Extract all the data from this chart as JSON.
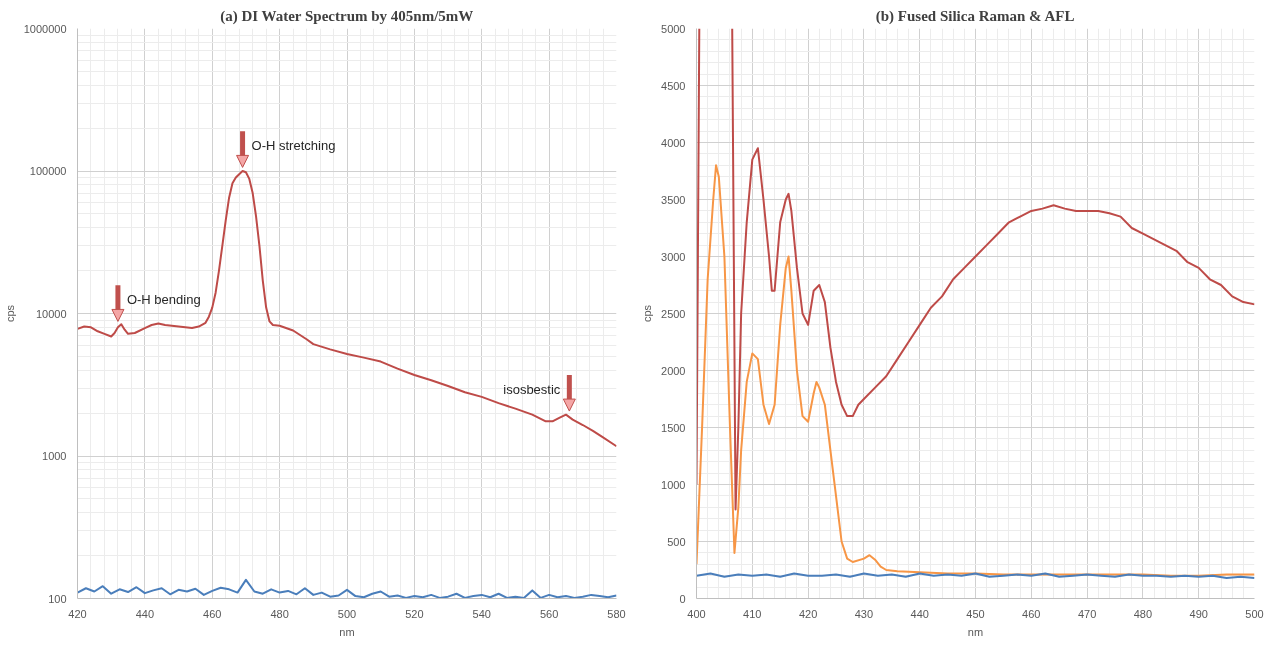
{
  "chart_data": [
    {
      "type": "line",
      "title": "(a) DI Water Spectrum by 405nm/5mW",
      "xlabel": "nm",
      "ylabel": "cps",
      "log": "y",
      "grid": true,
      "xlim": [
        420,
        580
      ],
      "xticks": [
        420,
        440,
        460,
        480,
        500,
        520,
        540,
        560,
        580
      ],
      "ylim": [
        100,
        1000000
      ],
      "yticks": [
        100,
        1000,
        10000,
        100000,
        1000000
      ],
      "annotations": [
        {
          "text": "O-H bending",
          "x": 432,
          "y": 8300
        },
        {
          "text": "O-H stretching",
          "x": 469,
          "y": 100000
        },
        {
          "text": "isosbestic",
          "x": 566,
          "y": 1950
        }
      ],
      "series": [
        {
          "color": "#be4b48",
          "x": [
            420,
            422,
            424,
            426,
            428,
            430,
            431,
            432,
            433,
            434,
            435,
            437,
            440,
            442,
            444,
            446,
            450,
            454,
            456,
            458,
            459,
            460,
            461,
            462,
            463,
            464,
            465,
            466,
            467,
            468,
            469,
            470,
            471,
            472,
            473,
            474,
            475,
            476,
            477,
            478,
            480,
            484,
            488,
            490,
            495,
            500,
            505,
            510,
            515,
            520,
            525,
            530,
            535,
            540,
            545,
            550,
            555,
            559,
            561,
            563,
            565,
            567,
            570,
            573,
            576,
            580
          ],
          "values": [
            7800,
            8100,
            8000,
            7500,
            7200,
            6900,
            7300,
            8000,
            8400,
            7700,
            7200,
            7300,
            7900,
            8300,
            8500,
            8300,
            8100,
            7900,
            8100,
            8600,
            9500,
            11000,
            14000,
            20000,
            30000,
            45000,
            65000,
            82000,
            90000,
            95000,
            100000,
            98000,
            88000,
            70000,
            48000,
            30000,
            17000,
            11000,
            8800,
            8300,
            8200,
            7600,
            6600,
            6100,
            5600,
            5200,
            4900,
            4600,
            4100,
            3700,
            3400,
            3100,
            2800,
            2600,
            2350,
            2150,
            1950,
            1750,
            1750,
            1850,
            1950,
            1800,
            1650,
            1500,
            1350,
            1170
          ]
        },
        {
          "color": "#4a7ebb",
          "x": [
            420,
            422.5,
            425,
            427.5,
            430,
            432.5,
            435,
            437.5,
            440,
            442.5,
            445,
            447.5,
            450,
            452.5,
            455,
            457.5,
            460,
            462.5,
            465,
            467.5,
            470,
            472.5,
            475,
            477.5,
            480,
            482.5,
            485,
            487.5,
            490,
            492.5,
            495,
            497.5,
            500,
            502.5,
            505,
            507.5,
            510,
            512.5,
            515,
            517.5,
            520,
            522.5,
            525,
            527.5,
            530,
            532.5,
            535,
            537.5,
            540,
            542.5,
            545,
            547.5,
            550,
            552.5,
            555,
            557.5,
            560,
            562.5,
            565,
            567.5,
            570,
            572.5,
            575,
            577.5,
            580
          ],
          "values": [
            110,
            118,
            112,
            122,
            108,
            116,
            111,
            120,
            109,
            114,
            118,
            107,
            115,
            112,
            117,
            106,
            113,
            119,
            116,
            110,
            135,
            112,
            108,
            116,
            110,
            113,
            107,
            118,
            106,
            110,
            103,
            105,
            115,
            104,
            102,
            108,
            112,
            103,
            105,
            101,
            104,
            102,
            106,
            101,
            103,
            108,
            101,
            104,
            106,
            102,
            108,
            101,
            103,
            101,
            114,
            101,
            106,
            102,
            104,
            101,
            103,
            106,
            104,
            102,
            105
          ]
        }
      ]
    },
    {
      "type": "line",
      "title": "(b) Fused Silica Raman & AFL",
      "xlabel": "nm",
      "ylabel": "cps",
      "grid": true,
      "xlim": [
        400,
        500
      ],
      "xticks": [
        400,
        410,
        420,
        430,
        440,
        450,
        460,
        470,
        480,
        490,
        500
      ],
      "ylim": [
        0,
        5000
      ],
      "yticks": [
        0,
        500,
        1000,
        1500,
        2000,
        2500,
        3000,
        3500,
        4000,
        4500,
        5000
      ],
      "series": [
        {
          "color": "#be4b48",
          "x": [
            400,
            400.5,
            403,
            406.4,
            407,
            407.5,
            408,
            409,
            410,
            410.5,
            411,
            412,
            413,
            413.5,
            414,
            415,
            416,
            416.5,
            417,
            418,
            419,
            420,
            421,
            422,
            423,
            424,
            425,
            426,
            427,
            428,
            429,
            430,
            432,
            434,
            436,
            438,
            440,
            442,
            444,
            446,
            448,
            450,
            452,
            454,
            456,
            458,
            460,
            462,
            464,
            466,
            468,
            470,
            472,
            474,
            476,
            478,
            480,
            482,
            484,
            486,
            488,
            490,
            492,
            494,
            496,
            498,
            500
          ],
          "values": [
            1000,
            5000,
            null,
            5000,
            780,
            1500,
            2500,
            3300,
            3850,
            3900,
            3950,
            3500,
            3000,
            2700,
            2700,
            3300,
            3500,
            3550,
            3400,
            2900,
            2500,
            2400,
            2700,
            2750,
            2600,
            2200,
            1900,
            1700,
            1600,
            1600,
            1700,
            1750,
            1850,
            1950,
            2100,
            2250,
            2400,
            2550,
            2650,
            2800,
            2900,
            3000,
            3100,
            3200,
            3300,
            3350,
            3400,
            3420,
            3450,
            3420,
            3400,
            3400,
            3400,
            3380,
            3350,
            3250,
            3200,
            3150,
            3100,
            3050,
            2950,
            2900,
            2800,
            2750,
            2650,
            2600,
            2580
          ]
        },
        {
          "color": "#f79646",
          "x": [
            400,
            401,
            402,
            403,
            403.5,
            404,
            405,
            406,
            406.8,
            407.5,
            408,
            409,
            410,
            411,
            412,
            413,
            414,
            415,
            416,
            416.5,
            417,
            418,
            419,
            420,
            421,
            421.5,
            422,
            423,
            424,
            425,
            426,
            427,
            428,
            430,
            431,
            432,
            433,
            434,
            436,
            440,
            445,
            450,
            455,
            460,
            465,
            470,
            475,
            480,
            485,
            490,
            495,
            500
          ],
          "values": [
            300,
            1500,
            2800,
            3500,
            3800,
            3700,
            3000,
            1500,
            400,
            800,
            1300,
            1900,
            2150,
            2100,
            1700,
            1530,
            1700,
            2400,
            2900,
            3000,
            2700,
            2000,
            1600,
            1550,
            1800,
            1900,
            1850,
            1700,
            1300,
            900,
            500,
            350,
            320,
            350,
            380,
            340,
            280,
            250,
            240,
            230,
            220,
            220,
            210,
            210,
            210,
            210,
            210,
            210,
            200,
            200,
            210,
            210
          ]
        },
        {
          "color": "#4a7ebb",
          "x": [
            400,
            402.5,
            405,
            407.5,
            410,
            412.5,
            415,
            417.5,
            420,
            422.5,
            425,
            427.5,
            430,
            432.5,
            435,
            437.5,
            440,
            442.5,
            445,
            447.5,
            450,
            452.5,
            455,
            457.5,
            460,
            462.5,
            465,
            467.5,
            470,
            472.5,
            475,
            477.5,
            480,
            482.5,
            485,
            487.5,
            490,
            492.5,
            495,
            497.5,
            500
          ],
          "values": [
            200,
            220,
            190,
            210,
            200,
            210,
            190,
            220,
            200,
            200,
            210,
            190,
            220,
            200,
            210,
            190,
            220,
            200,
            210,
            200,
            220,
            190,
            200,
            210,
            200,
            220,
            190,
            200,
            210,
            200,
            190,
            210,
            200,
            200,
            190,
            200,
            190,
            200,
            180,
            190,
            180
          ]
        }
      ]
    }
  ]
}
